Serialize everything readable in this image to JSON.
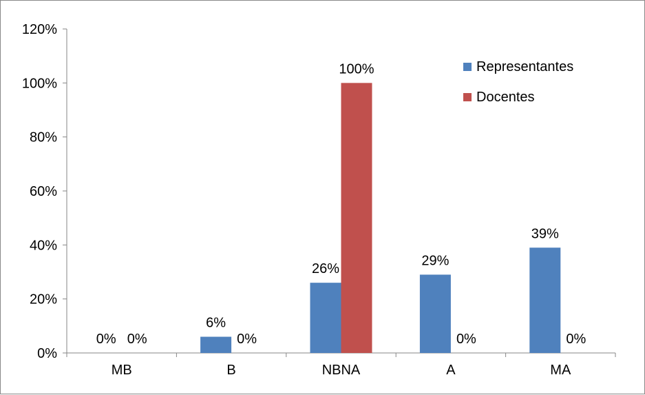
{
  "chart_data": {
    "type": "bar",
    "categories": [
      "MB",
      "B",
      "NBNA",
      "A",
      "MA"
    ],
    "series": [
      {
        "name": "Representantes",
        "color": "#4F81BD",
        "values": [
          0,
          6,
          26,
          29,
          39
        ],
        "labels": [
          "0%",
          "6%",
          "26%",
          "29%",
          "39%"
        ]
      },
      {
        "name": "Docentes",
        "color": "#C0504D",
        "values": [
          0,
          0,
          100,
          0,
          0
        ],
        "labels": [
          "0%",
          "0%",
          "100%",
          "0%",
          "0%"
        ]
      }
    ],
    "ylim": [
      0,
      120
    ],
    "yticks": [
      0,
      20,
      40,
      60,
      80,
      100,
      120
    ],
    "ytick_labels": [
      "0%",
      "20%",
      "40%",
      "60%",
      "80%",
      "100%",
      "120%"
    ],
    "grid": false,
    "legend_position": "top-right"
  }
}
